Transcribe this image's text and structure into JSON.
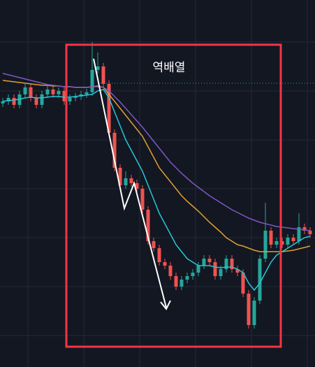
{
  "chart_data": {
    "type": "candlestick",
    "annotation": "역배열",
    "up_color": "#26a69a",
    "down_color": "#ef5350",
    "open": [
      352,
      355,
      360,
      350,
      365,
      375,
      360,
      350,
      365,
      372,
      365,
      370,
      355,
      360,
      362,
      365,
      368,
      400,
      405,
      380,
      310,
      260,
      235,
      245,
      238,
      230,
      200,
      155,
      145,
      125,
      120,
      105,
      90,
      100,
      105,
      110,
      120,
      130,
      125,
      105,
      115,
      130,
      115,
      110,
      80,
      35,
      70,
      130,
      170,
      150,
      155,
      150,
      160,
      155,
      175,
      170
    ],
    "close": [
      355,
      360,
      350,
      365,
      375,
      360,
      350,
      365,
      372,
      365,
      370,
      355,
      360,
      362,
      365,
      368,
      400,
      405,
      380,
      310,
      260,
      235,
      245,
      238,
      230,
      200,
      155,
      145,
      125,
      120,
      105,
      90,
      100,
      105,
      110,
      120,
      130,
      125,
      105,
      115,
      130,
      115,
      110,
      80,
      35,
      70,
      130,
      170,
      150,
      155,
      150,
      160,
      155,
      175,
      170,
      165
    ],
    "high": [
      360,
      365,
      365,
      370,
      380,
      380,
      365,
      370,
      377,
      377,
      375,
      375,
      365,
      367,
      370,
      373,
      440,
      425,
      410,
      385,
      315,
      265,
      255,
      250,
      243,
      235,
      205,
      160,
      150,
      130,
      125,
      110,
      105,
      110,
      115,
      125,
      135,
      135,
      130,
      120,
      135,
      135,
      120,
      115,
      85,
      75,
      135,
      210,
      175,
      160,
      160,
      165,
      165,
      195,
      180,
      175
    ],
    "low": [
      347,
      350,
      345,
      345,
      360,
      355,
      345,
      345,
      360,
      360,
      360,
      350,
      350,
      355,
      357,
      360,
      363,
      395,
      375,
      305,
      255,
      230,
      230,
      233,
      225,
      195,
      150,
      140,
      120,
      115,
      100,
      85,
      85,
      95,
      100,
      105,
      115,
      120,
      100,
      100,
      110,
      110,
      105,
      75,
      30,
      30,
      65,
      125,
      145,
      145,
      145,
      145,
      150,
      150,
      165,
      160
    ],
    "series": [
      {
        "color": "#26c6da",
        "values": [
          355,
          356,
          357,
          358,
          360,
          361,
          360,
          360,
          361,
          362,
          362,
          361,
          361,
          362,
          363,
          364,
          365,
          370,
          372,
          360,
          340,
          320,
          300,
          285,
          270,
          255,
          235,
          215,
          195,
          180,
          165,
          150,
          140,
          130,
          125,
          120,
          120,
          120,
          118,
          117,
          118,
          118,
          115,
          110,
          95,
          85,
          95,
          110,
          125,
          135,
          140,
          145,
          150,
          155,
          160,
          162
        ]
      },
      {
        "color": "#e0a030",
        "values": [
          385,
          384,
          383,
          382,
          381,
          380,
          379,
          378,
          378,
          377,
          377,
          376,
          376,
          375,
          375,
          375,
          376,
          377,
          375,
          365,
          355,
          345,
          335,
          325,
          315,
          305,
          290,
          275,
          260,
          250,
          240,
          230,
          220,
          212,
          205,
          198,
          190,
          182,
          175,
          168,
          160,
          155,
          150,
          148,
          145,
          142,
          140,
          140,
          140,
          140,
          140,
          141,
          142,
          144,
          146,
          148
        ]
      },
      {
        "color": "#7e57c2",
        "values": [
          395,
          393,
          391,
          389,
          387,
          385,
          383,
          381,
          379,
          378,
          377,
          376,
          376,
          375,
          375,
          375,
          376,
          376,
          375,
          370,
          362,
          354,
          345,
          336,
          327,
          318,
          308,
          298,
          288,
          278,
          268,
          260,
          252,
          245,
          238,
          232,
          226,
          220,
          215,
          210,
          205,
          200,
          196,
          192,
          188,
          185,
          182,
          180,
          178,
          176,
          175,
          174,
          173,
          172,
          171,
          170
        ]
      }
    ]
  }
}
